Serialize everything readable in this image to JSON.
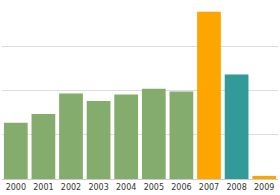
{
  "chart_data": {
    "type": "bar",
    "categories": [
      "2000",
      "2001",
      "2002",
      "2003",
      "2004",
      "2005",
      "2006",
      "2007",
      "2008",
      "2009"
    ],
    "values": [
      1.27,
      1.47,
      1.93,
      1.76,
      1.91,
      2.04,
      1.98,
      3.78,
      2.36,
      0.07
    ],
    "colors": [
      "#84ac6c",
      "#84ac6c",
      "#84ac6c",
      "#84ac6c",
      "#84ac6c",
      "#84ac6c",
      "#84ac6c",
      "#ffa500",
      "#339a9a",
      "#ffa500"
    ],
    "ylim": [
      0,
      4
    ],
    "yticks": [
      0,
      1,
      2,
      3,
      4
    ],
    "grid": true,
    "tick_labels": "x"
  }
}
